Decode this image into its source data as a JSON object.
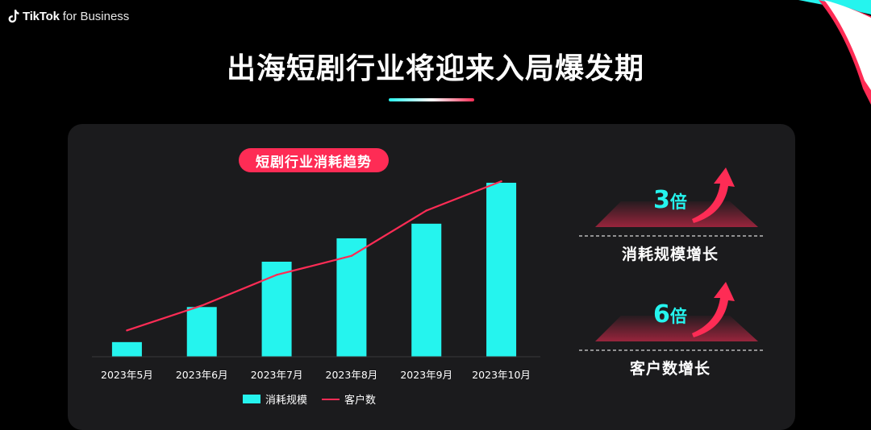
{
  "brand": {
    "name": "TikTok",
    "suffix": "for Business"
  },
  "title": "出海短剧行业将迎来入局爆发期",
  "colors": {
    "accent_cyan": "#25f4ee",
    "accent_red": "#fe2c55",
    "panel": "#1b1b1d",
    "background": "#000000"
  },
  "chart_data": {
    "type": "bar",
    "title": "短剧行业消耗趋势",
    "categories": [
      "2023年5月",
      "2023年6月",
      "2023年7月",
      "2023年8月",
      "2023年9月",
      "2023年10月"
    ],
    "series": [
      {
        "name": "消耗规模",
        "kind": "bar",
        "values": [
          1.0,
          3.4,
          6.5,
          8.1,
          9.1,
          11.9
        ]
      },
      {
        "name": "客户数",
        "kind": "line",
        "values": [
          1.8,
          3.5,
          5.6,
          6.9,
          10.0,
          12.0
        ]
      }
    ],
    "ylim": [
      0,
      13
    ],
    "grid": false,
    "legend_position": "bottom",
    "value_axis_shown": false
  },
  "highlights": [
    {
      "number": "3",
      "unit": "倍",
      "label": "消耗规模增长",
      "icon": "arrow-up-icon"
    },
    {
      "number": "6",
      "unit": "倍",
      "label": "客户数增长",
      "icon": "arrow-up-icon"
    }
  ]
}
